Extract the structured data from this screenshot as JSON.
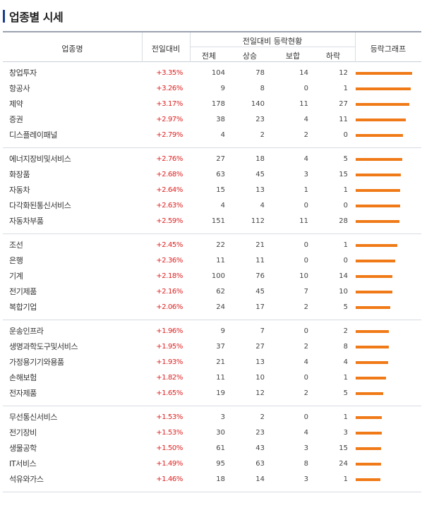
{
  "title": "업종별 시세",
  "columns": {
    "name": "업종명",
    "change": "전일대비",
    "group": "전일대비 등락현황",
    "total": "전체",
    "up": "상승",
    "flat": "보합",
    "down": "하락",
    "graph": "등락그래프"
  },
  "colors": {
    "rate": "#e02020",
    "bar": "#f07a17",
    "accent": "#1a3d8f"
  },
  "groups": [
    [
      {
        "name": "창업투자",
        "rate": "+3.35%",
        "total": "104",
        "up": "78",
        "flat": "14",
        "down": "12",
        "pct": 3.35
      },
      {
        "name": "항공사",
        "rate": "+3.26%",
        "total": "9",
        "up": "8",
        "flat": "0",
        "down": "1",
        "pct": 3.26
      },
      {
        "name": "제약",
        "rate": "+3.17%",
        "total": "178",
        "up": "140",
        "flat": "11",
        "down": "27",
        "pct": 3.17
      },
      {
        "name": "증권",
        "rate": "+2.97%",
        "total": "38",
        "up": "23",
        "flat": "4",
        "down": "11",
        "pct": 2.97
      },
      {
        "name": "디스플레이패널",
        "rate": "+2.79%",
        "total": "4",
        "up": "2",
        "flat": "2",
        "down": "0",
        "pct": 2.79
      }
    ],
    [
      {
        "name": "에너지장비및서비스",
        "rate": "+2.76%",
        "total": "27",
        "up": "18",
        "flat": "4",
        "down": "5",
        "pct": 2.76
      },
      {
        "name": "화장품",
        "rate": "+2.68%",
        "total": "63",
        "up": "45",
        "flat": "3",
        "down": "15",
        "pct": 2.68
      },
      {
        "name": "자동차",
        "rate": "+2.64%",
        "total": "15",
        "up": "13",
        "flat": "1",
        "down": "1",
        "pct": 2.64
      },
      {
        "name": "다각화된통신서비스",
        "rate": "+2.63%",
        "total": "4",
        "up": "4",
        "flat": "0",
        "down": "0",
        "pct": 2.63
      },
      {
        "name": "자동차부품",
        "rate": "+2.59%",
        "total": "151",
        "up": "112",
        "flat": "11",
        "down": "28",
        "pct": 2.59
      }
    ],
    [
      {
        "name": "조선",
        "rate": "+2.45%",
        "total": "22",
        "up": "21",
        "flat": "0",
        "down": "1",
        "pct": 2.45
      },
      {
        "name": "은행",
        "rate": "+2.36%",
        "total": "11",
        "up": "11",
        "flat": "0",
        "down": "0",
        "pct": 2.36
      },
      {
        "name": "기계",
        "rate": "+2.18%",
        "total": "100",
        "up": "76",
        "flat": "10",
        "down": "14",
        "pct": 2.18
      },
      {
        "name": "전기제품",
        "rate": "+2.16%",
        "total": "62",
        "up": "45",
        "flat": "7",
        "down": "10",
        "pct": 2.16
      },
      {
        "name": "복합기업",
        "rate": "+2.06%",
        "total": "24",
        "up": "17",
        "flat": "2",
        "down": "5",
        "pct": 2.06
      }
    ],
    [
      {
        "name": "운송인프라",
        "rate": "+1.96%",
        "total": "9",
        "up": "7",
        "flat": "0",
        "down": "2",
        "pct": 1.96
      },
      {
        "name": "생명과학도구및서비스",
        "rate": "+1.95%",
        "total": "37",
        "up": "27",
        "flat": "2",
        "down": "8",
        "pct": 1.95
      },
      {
        "name": "가정용기기와용품",
        "rate": "+1.93%",
        "total": "21",
        "up": "13",
        "flat": "4",
        "down": "4",
        "pct": 1.93
      },
      {
        "name": "손해보험",
        "rate": "+1.82%",
        "total": "11",
        "up": "10",
        "flat": "0",
        "down": "1",
        "pct": 1.82
      },
      {
        "name": "전자제품",
        "rate": "+1.65%",
        "total": "19",
        "up": "12",
        "flat": "2",
        "down": "5",
        "pct": 1.65
      }
    ],
    [
      {
        "name": "무선통신서비스",
        "rate": "+1.53%",
        "total": "3",
        "up": "2",
        "flat": "0",
        "down": "1",
        "pct": 1.53
      },
      {
        "name": "전기장비",
        "rate": "+1.53%",
        "total": "30",
        "up": "23",
        "flat": "4",
        "down": "3",
        "pct": 1.53
      },
      {
        "name": "생물공학",
        "rate": "+1.50%",
        "total": "61",
        "up": "43",
        "flat": "3",
        "down": "15",
        "pct": 1.5
      },
      {
        "name": "IT서비스",
        "rate": "+1.49%",
        "total": "95",
        "up": "63",
        "flat": "8",
        "down": "24",
        "pct": 1.49
      },
      {
        "name": "석유와가스",
        "rate": "+1.46%",
        "total": "18",
        "up": "14",
        "flat": "3",
        "down": "1",
        "pct": 1.46
      }
    ]
  ]
}
